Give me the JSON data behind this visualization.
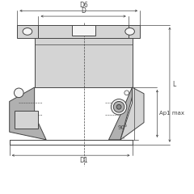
{
  "bg_color": "#ffffff",
  "line_color": "#444444",
  "dim_color": "#444444",
  "fill_light": "#d4d4d4",
  "fill_mid": "#b0b0b0",
  "fill_dark": "#888888",
  "fill_white": "#f5f5f5",
  "labels": {
    "D6": "D6",
    "D": "D",
    "D1": "D1",
    "L": "L",
    "Ap1max": "Ap1 max",
    "angle": "90°"
  },
  "figsize": [
    2.4,
    2.4
  ],
  "dpi": 100
}
